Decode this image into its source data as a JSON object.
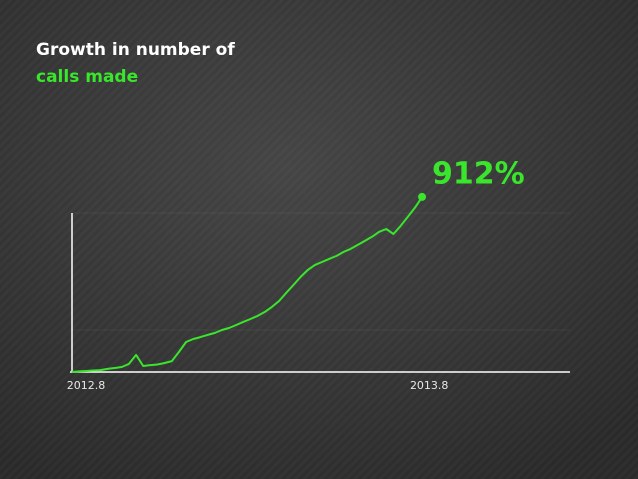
{
  "chart_data": {
    "type": "line",
    "title": [
      "Growth in number of",
      "calls made"
    ],
    "categories": [
      null,
      null,
      "2012.8",
      null,
      null,
      null,
      null,
      null,
      null,
      null,
      null,
      null,
      null,
      null,
      null,
      null,
      null,
      null,
      null,
      null,
      null,
      null,
      null,
      null,
      null,
      null,
      null,
      null,
      null,
      null,
      null,
      null,
      null,
      null,
      null,
      null,
      null,
      null,
      null,
      null,
      null,
      null,
      null,
      null,
      null,
      null,
      null,
      null,
      null,
      null,
      "2013.8"
    ],
    "series": [
      {
        "color": "#39e62c",
        "values": [
          0,
          3,
          5,
          8,
          10,
          16,
          21,
          26,
          42,
          89,
          31,
          36,
          39,
          47,
          57,
          104,
          156,
          172,
          182,
          193,
          203,
          219,
          229,
          245,
          261,
          276,
          292,
          313,
          339,
          370,
          412,
          453,
          495,
          531,
          557,
          573,
          589,
          604,
          625,
          641,
          662,
          683,
          704,
          730,
          745,
          719,
          761,
          808,
          855,
          912,
          null
        ],
        "value_labels": [
          null,
          null,
          null,
          null,
          null,
          null,
          null,
          null,
          null,
          null,
          null,
          null,
          null,
          null,
          null,
          null,
          null,
          null,
          null,
          null,
          null,
          null,
          null,
          null,
          null,
          null,
          null,
          null,
          null,
          null,
          null,
          null,
          null,
          null,
          null,
          null,
          null,
          null,
          null,
          null,
          null,
          null,
          null,
          null,
          null,
          null,
          null,
          null,
          null,
          "912%",
          null
        ]
      }
    ],
    "ylim": [
      0,
      1000
    ]
  }
}
